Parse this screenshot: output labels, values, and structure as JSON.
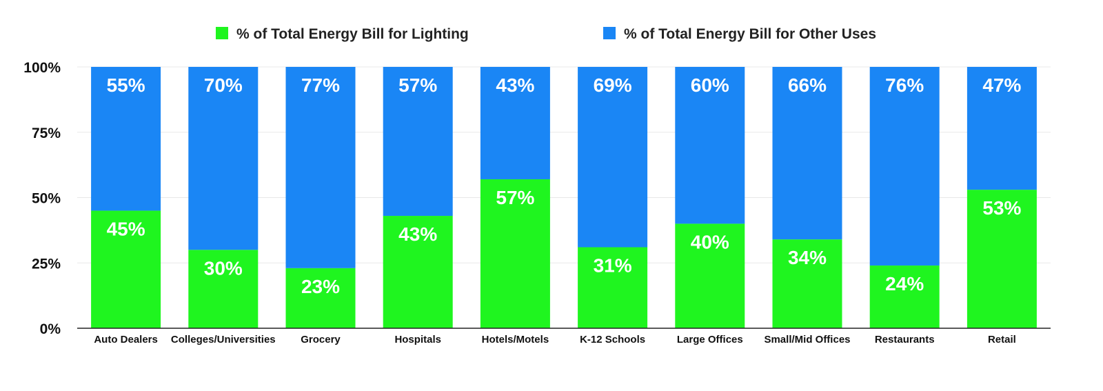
{
  "chart_data": {
    "type": "bar",
    "stacked": true,
    "categories": [
      "Auto Dealers",
      "Colleges/Universities",
      "Grocery",
      "Hospitals",
      "Hotels/Motels",
      "K-12 Schools",
      "Large Offices",
      "Small/Mid Offices",
      "Restaurants",
      "Retail"
    ],
    "series": [
      {
        "name": "% of Total Energy Bill for Lighting",
        "color": "#1ff51f",
        "values": [
          45,
          30,
          23,
          43,
          57,
          31,
          40,
          34,
          24,
          53
        ],
        "labels": [
          "45%",
          "30%",
          "23%",
          "43%",
          "57%",
          "31%",
          "40%",
          "34%",
          "24%",
          "53%"
        ]
      },
      {
        "name": "% of Total Energy Bill for Other Uses",
        "color": "#1a86f5",
        "values": [
          55,
          70,
          77,
          57,
          43,
          69,
          60,
          66,
          76,
          47
        ],
        "labels": [
          "55%",
          "70%",
          "77%",
          "57%",
          "43%",
          "69%",
          "60%",
          "66%",
          "76%",
          "47%"
        ]
      }
    ],
    "title": "",
    "xlabel": "",
    "ylabel": "",
    "ylim": [
      0,
      100
    ],
    "yticks": [
      0,
      25,
      50,
      75,
      100
    ],
    "ytick_labels": [
      "0%",
      "25%",
      "50%",
      "75%",
      "100%"
    ],
    "grid": true,
    "legend_position": "top-center"
  }
}
